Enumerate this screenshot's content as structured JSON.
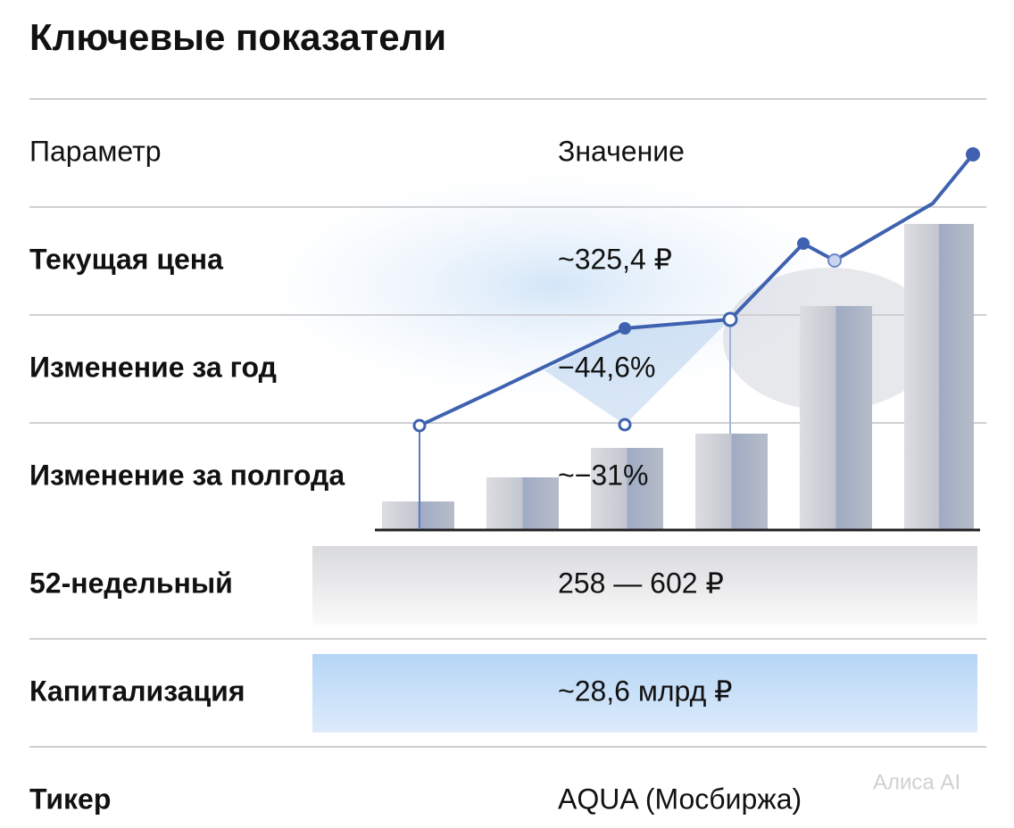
{
  "title": "Ключевые показатели",
  "table": {
    "header": [
      "Параметр",
      "Значение"
    ],
    "rows": [
      [
        "Текущая цена",
        "~325,4 ₽"
      ],
      [
        "Изменение за год",
        "−44,6%"
      ],
      [
        "Изменение за полгода",
        "~−31%"
      ],
      [
        "52-недельный",
        "258 — 602 ₽"
      ],
      [
        "Капитализация",
        "~28,6 млрд ₽"
      ],
      [
        "Тикер",
        "AQUA (Мосбиржа)"
      ]
    ]
  },
  "watermark": "Алиса AI"
}
